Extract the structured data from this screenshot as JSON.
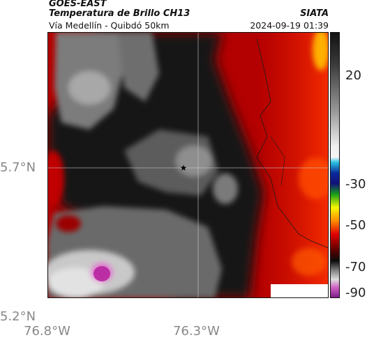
{
  "header": {
    "satellite": "GOES-EAST",
    "product": "Temperatura de Brillo CH13",
    "subtitle": "Vía Medellín - Quibdó 50km",
    "organization": "SIATA",
    "timestamp": "2024-09-19 01:39"
  },
  "map": {
    "lat_labels": [
      "5.7°N",
      "5.2°N"
    ],
    "lon_labels": [
      "76.8°W",
      "76.3°W"
    ],
    "marker_icon": "star-icon"
  },
  "colorbar": {
    "ticks": [
      "20",
      "-30",
      "-50",
      "-70",
      "-90"
    ],
    "range": [
      -95,
      30
    ]
  },
  "colors": {
    "warm_red": "#c20000",
    "dark": "#0d0d0d",
    "gray": "#8a8a8a",
    "light_gray": "#cfcfcf",
    "magenta": "#c23ab0"
  }
}
